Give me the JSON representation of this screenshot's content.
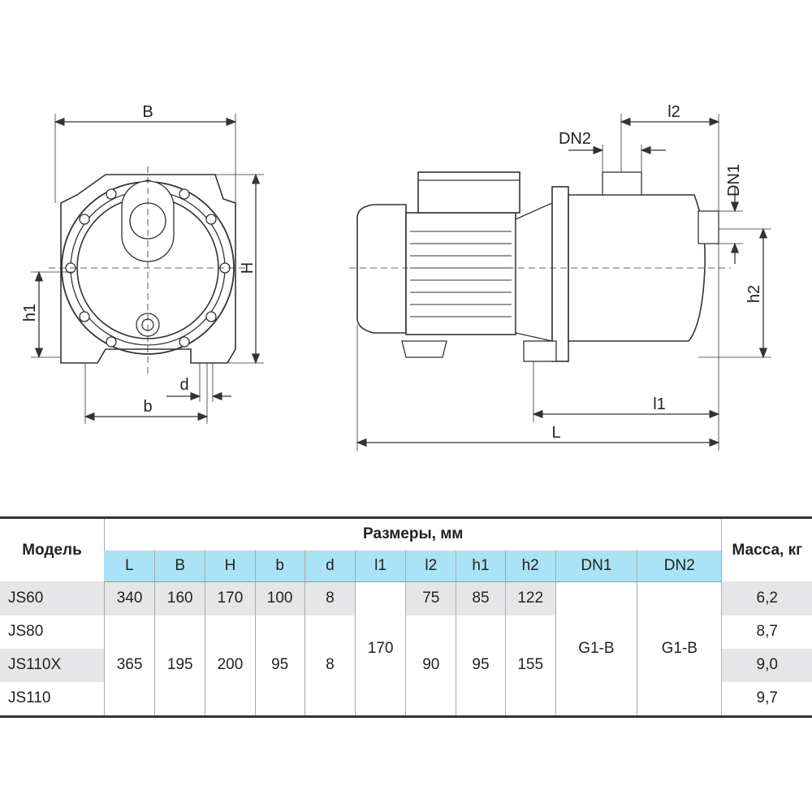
{
  "drawing": {
    "front_view_labels": {
      "B": "B",
      "H": "H",
      "h1": "h1",
      "b": "b",
      "d": "d"
    },
    "side_view_labels": {
      "DN2": "DN2",
      "l2": "l2",
      "DN1": "DN1",
      "h2": "h2",
      "l1": "l1",
      "L": "L"
    }
  },
  "table": {
    "model_header": "Модель",
    "dimensions_header": "Размеры, мм",
    "mass_header": "Масса, кг",
    "columns": [
      "L",
      "B",
      "H",
      "b",
      "d",
      "l1",
      "l2",
      "h1",
      "h2",
      "DN1",
      "DN2"
    ],
    "header_bg": "#a9e3f5",
    "rows": [
      {
        "model": "JS60",
        "L": "340",
        "B": "160",
        "H": "170",
        "b": "100",
        "d": "8",
        "l2": "75",
        "h1": "85",
        "h2": "122",
        "mass": "6,2"
      },
      {
        "model": "JS80",
        "mass": "8,7"
      },
      {
        "model": "JS110X",
        "mass": "9,0"
      },
      {
        "model": "JS110",
        "mass": "9,7"
      }
    ],
    "merged": {
      "L": "365",
      "B": "195",
      "H": "200",
      "b": "95",
      "d": "8",
      "l1": "170",
      "l2": "90",
      "h1": "95",
      "h2": "155",
      "DN1": "G1-B",
      "DN2": "G1-B"
    }
  }
}
